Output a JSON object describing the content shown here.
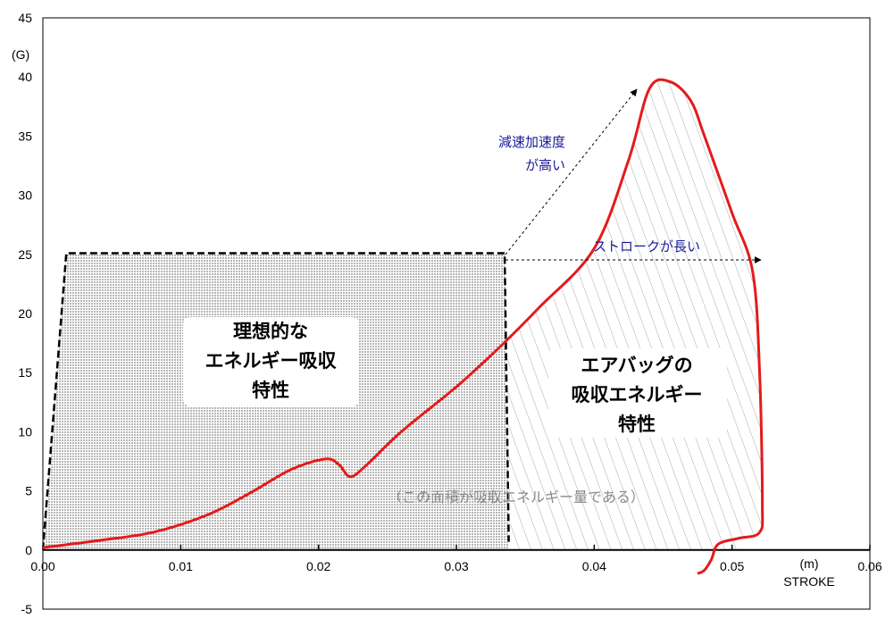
{
  "chart_data": {
    "type": "line",
    "title": "",
    "xlabel_unit": "(m)",
    "xlabel": "STROKE",
    "ylabel": "(G)",
    "xlim": [
      0,
      0.06
    ],
    "ylim": [
      -5,
      45
    ],
    "x_ticks": [
      "0.00",
      "0.01",
      "0.02",
      "0.03",
      "0.04",
      "0.05",
      "0.06"
    ],
    "y_ticks": [
      "-5",
      "0",
      "5",
      "10",
      "15",
      "20",
      "25",
      "30",
      "35",
      "40",
      "45"
    ],
    "grid": false,
    "colors": {
      "airbag": "#e31b1b",
      "ideal": "#000000",
      "note": "#1a1a99",
      "area_note": "#8a8a8a"
    },
    "series": [
      {
        "style": "solid-red",
        "x": [
          0.0,
          0.004,
          0.008,
          0.012,
          0.015,
          0.018,
          0.0205,
          0.0215,
          0.0223,
          0.0235,
          0.026,
          0.03,
          0.033,
          0.036,
          0.04,
          0.0425,
          0.044,
          0.0455,
          0.047,
          0.048,
          0.05,
          0.0515,
          0.052,
          0.0522,
          0.052,
          0.0505,
          0.049,
          0.0485,
          0.048,
          0.0475
        ],
        "y": [
          0.2,
          0.8,
          1.5,
          3.0,
          4.8,
          6.8,
          7.7,
          7.2,
          6.2,
          7.2,
          10.0,
          13.8,
          17.0,
          20.5,
          25.5,
          33.0,
          39.0,
          39.6,
          38.0,
          35.0,
          28.5,
          23.5,
          15.0,
          4.0,
          1.5,
          1.0,
          0.5,
          -0.8,
          -1.7,
          -2.0
        ]
      },
      {
        "style": "dashed-black",
        "x": [
          0.0,
          0.0017,
          0.0335,
          0.0338
        ],
        "y": [
          0.0,
          25.1,
          25.1,
          0.7
        ]
      }
    ],
    "annotations": {
      "ideal_label": [
        "理想的な",
        "エネルギー吸収",
        "特性"
      ],
      "airbag_label": [
        "エアバッグの",
        "吸収エネルギー",
        "特性"
      ],
      "decel_label": [
        "減速加速度",
        "が高い"
      ],
      "stroke_label": "ストロークが長い",
      "area_label": "（この面積が吸収エネルギー量である）"
    }
  }
}
